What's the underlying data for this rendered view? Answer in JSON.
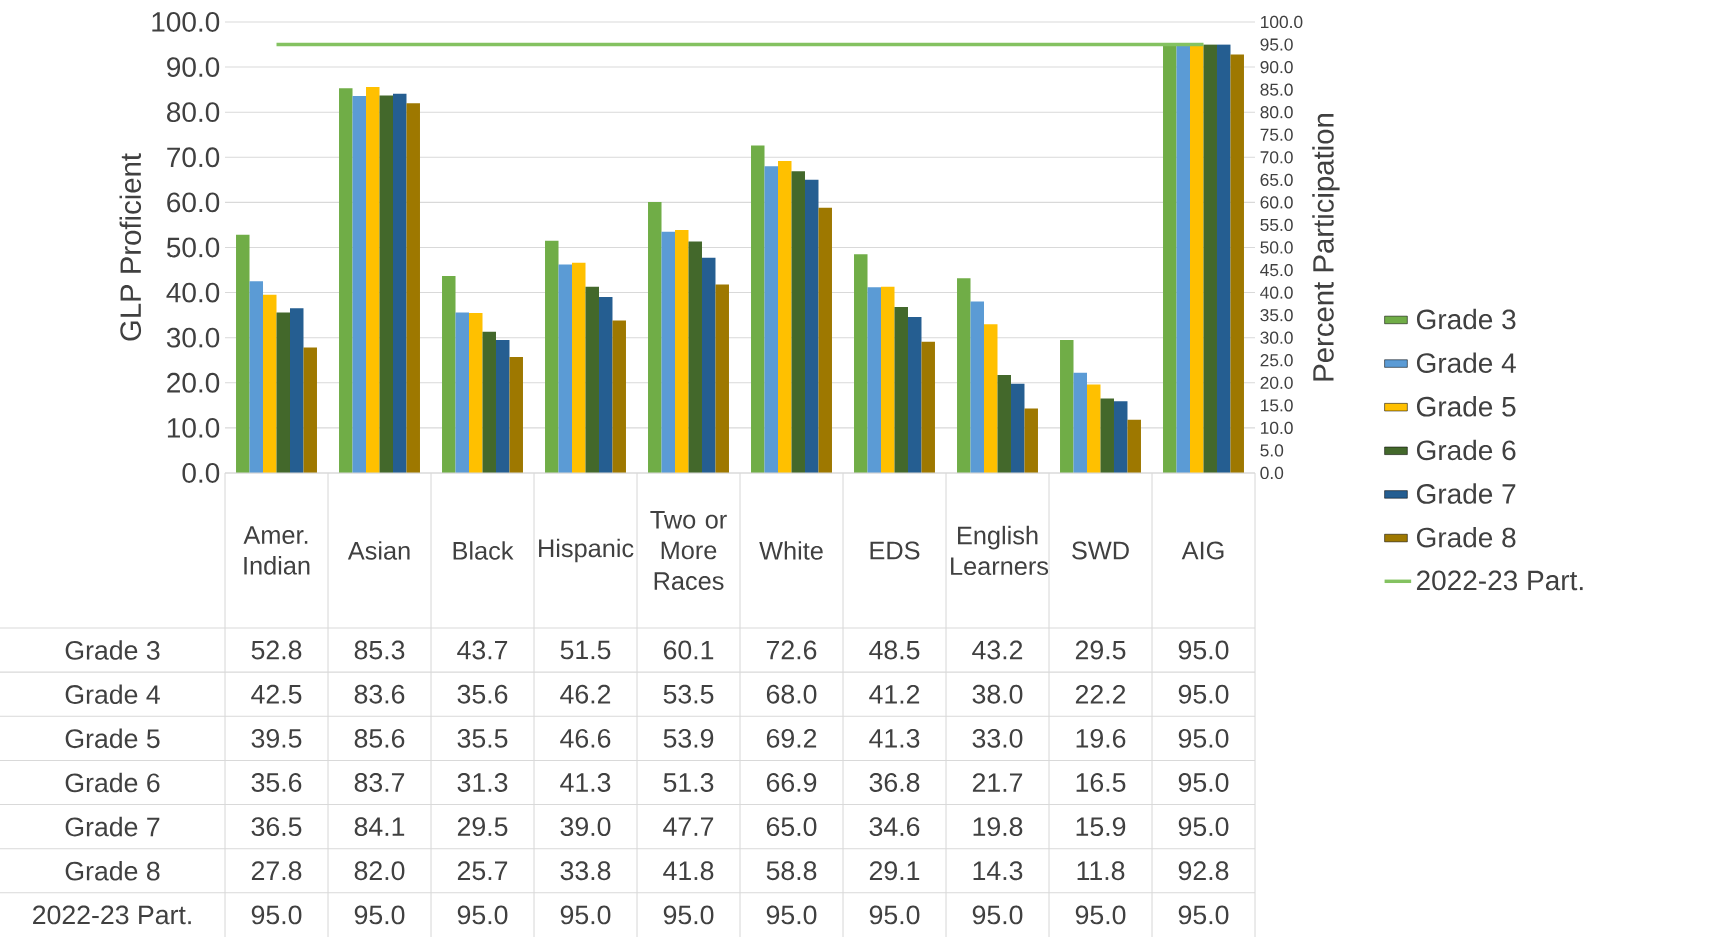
{
  "chart_data": {
    "type": "bar",
    "categories": [
      "Amer. Indian",
      "Asian",
      "Black",
      "Hispanic",
      "Two or More Races",
      "White",
      "EDS",
      "English Learners",
      "SWD",
      "AIG"
    ],
    "ylabel": "GLP Proficient",
    "y2label": "Percent Participation",
    "ylim": [
      0,
      100
    ],
    "yticks": [
      {
        "value": 0,
        "label": "0.0"
      },
      {
        "value": 10,
        "label": "10.0"
      },
      {
        "value": 20,
        "label": "20.0"
      },
      {
        "value": 30,
        "label": "30.0"
      },
      {
        "value": 40,
        "label": "40.0"
      },
      {
        "value": 50,
        "label": "50.0"
      },
      {
        "value": 60,
        "label": "60.0"
      },
      {
        "value": 70,
        "label": "70.0"
      },
      {
        "value": 80,
        "label": "80.0"
      },
      {
        "value": 90,
        "label": "90.0"
      },
      {
        "value": 100,
        "label": "100.0"
      }
    ],
    "y2lim": [
      0,
      100
    ],
    "y2ticks": [
      {
        "value": 0,
        "label": "0.0"
      },
      {
        "value": 5,
        "label": "5.0"
      },
      {
        "value": 10,
        "label": "10.0"
      },
      {
        "value": 15,
        "label": "15.0"
      },
      {
        "value": 20,
        "label": "20.0"
      },
      {
        "value": 25,
        "label": "25.0"
      },
      {
        "value": 30,
        "label": "30.0"
      },
      {
        "value": 35,
        "label": "35.0"
      },
      {
        "value": 40,
        "label": "40.0"
      },
      {
        "value": 45,
        "label": "45.0"
      },
      {
        "value": 50,
        "label": "50.0"
      },
      {
        "value": 55,
        "label": "55.0"
      },
      {
        "value": 60,
        "label": "60.0"
      },
      {
        "value": 65,
        "label": "65.0"
      },
      {
        "value": 70,
        "label": "70.0"
      },
      {
        "value": 75,
        "label": "75.0"
      },
      {
        "value": 80,
        "label": "80.0"
      },
      {
        "value": 85,
        "label": "85.0"
      },
      {
        "value": 90,
        "label": "90.0"
      },
      {
        "value": 95,
        "label": "95.0"
      },
      {
        "value": 100,
        "label": "100.0"
      }
    ],
    "grid": "y",
    "legend": "right",
    "series": [
      {
        "name": "Grade 3",
        "color": "#70ad47",
        "values": [
          52.8,
          85.3,
          43.7,
          51.5,
          60.1,
          72.6,
          48.5,
          43.2,
          29.5,
          95.0
        ],
        "value_labels": [
          "52.8",
          "85.3",
          "43.7",
          "51.5",
          "60.1",
          "72.6",
          "48.5",
          "43.2",
          "29.5",
          "95.0"
        ]
      },
      {
        "name": "Grade 4",
        "color": "#5b9bd5",
        "values": [
          42.5,
          83.6,
          35.6,
          46.2,
          53.5,
          68.0,
          41.2,
          38.0,
          22.2,
          95.0
        ],
        "value_labels": [
          "42.5",
          "83.6",
          "35.6",
          "46.2",
          "53.5",
          "68.0",
          "41.2",
          "38.0",
          "22.2",
          "95.0"
        ]
      },
      {
        "name": "Grade 5",
        "color": "#ffc000",
        "values": [
          39.5,
          85.6,
          35.5,
          46.6,
          53.9,
          69.2,
          41.3,
          33.0,
          19.6,
          95.0
        ],
        "value_labels": [
          "39.5",
          "85.6",
          "35.5",
          "46.6",
          "53.9",
          "69.2",
          "41.3",
          "33.0",
          "19.6",
          "95.0"
        ]
      },
      {
        "name": "Grade 6",
        "color": "#43682b",
        "values": [
          35.6,
          83.7,
          31.3,
          41.3,
          51.3,
          66.9,
          36.8,
          21.7,
          16.5,
          95.0
        ],
        "value_labels": [
          "35.6",
          "83.7",
          "31.3",
          "41.3",
          "51.3",
          "66.9",
          "36.8",
          "21.7",
          "16.5",
          "95.0"
        ]
      },
      {
        "name": "Grade 7",
        "color": "#255e91",
        "values": [
          36.5,
          84.1,
          29.5,
          39.0,
          47.7,
          65.0,
          34.6,
          19.8,
          15.9,
          95.0
        ],
        "value_labels": [
          "36.5",
          "84.1",
          "29.5",
          "39.0",
          "47.7",
          "65.0",
          "34.6",
          "19.8",
          "15.9",
          "95.0"
        ]
      },
      {
        "name": "Grade 8",
        "color": "#9e7800",
        "values": [
          27.8,
          82.0,
          25.7,
          33.8,
          41.8,
          58.8,
          29.1,
          14.3,
          11.8,
          92.8
        ],
        "value_labels": [
          "27.8",
          "82.0",
          "25.7",
          "33.8",
          "41.8",
          "58.8",
          "29.1",
          "14.3",
          "11.8",
          "92.8"
        ]
      },
      {
        "name": "2022-23 Part.",
        "color": "#84c261",
        "type": "line",
        "axis": "y2",
        "values": [
          95.0,
          95.0,
          95.0,
          95.0,
          95.0,
          95.0,
          95.0,
          95.0,
          95.0,
          95.0
        ],
        "value_labels": [
          "95.0",
          "95.0",
          "95.0",
          "95.0",
          "95.0",
          "95.0",
          "95.0",
          "95.0",
          "95.0",
          "95.0"
        ]
      }
    ]
  }
}
